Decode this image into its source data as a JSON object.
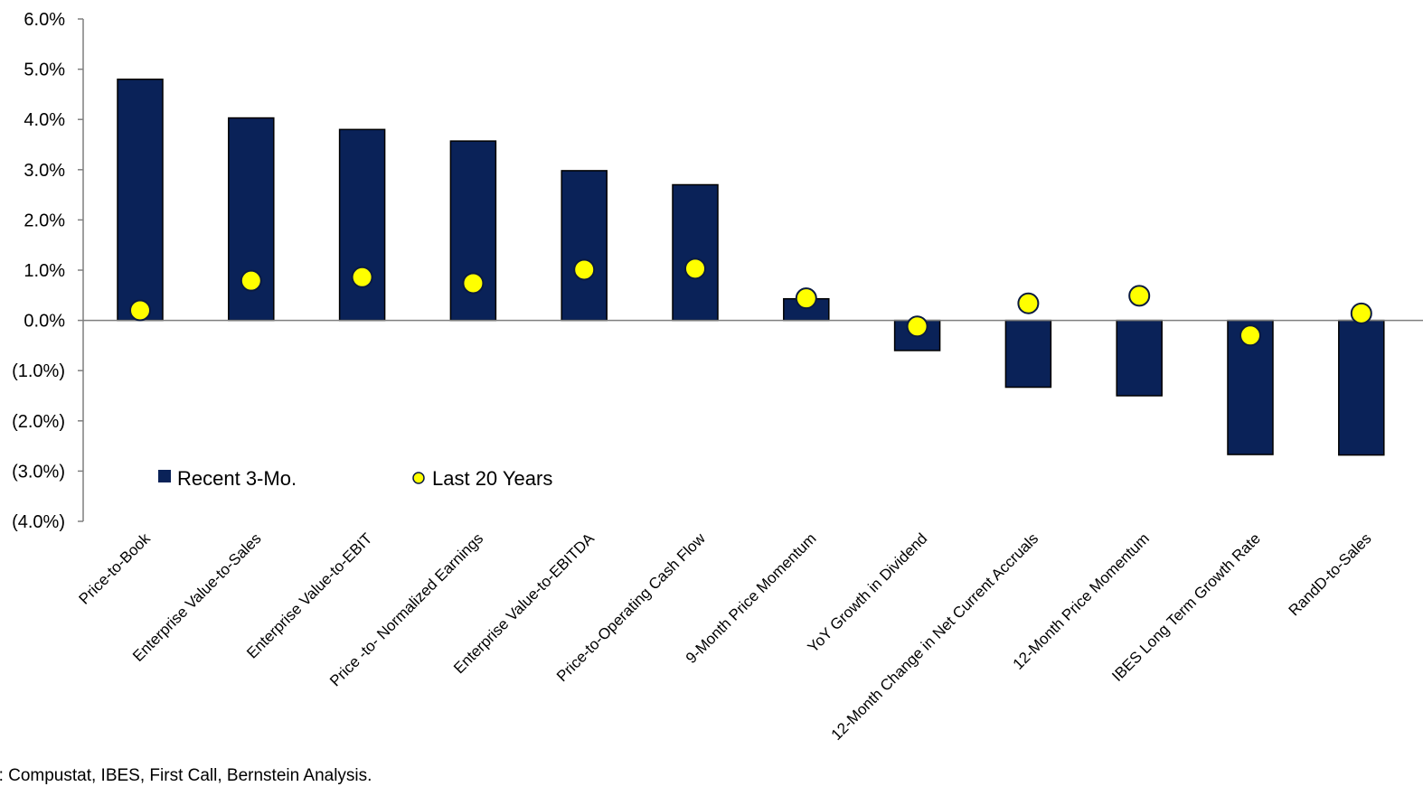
{
  "chart_data": {
    "type": "bar",
    "categories": [
      "Price-to-Book",
      "Enterprise Value-to-Sales",
      "Enterprise Value-to-EBIT",
      "Price -to- Normalized Earnings",
      "Enterprise Value-to-EBITDA",
      "Price-to-Operating Cash Flow",
      "9-Month Price Momentum",
      "YoY Growth in Dividend",
      "12-Month Change in Net Current Accruals",
      "12-Month Price Momentum",
      "IBES Long Term Growth Rate",
      "RandD-to-Sales"
    ],
    "series": [
      {
        "name": "Recent 3-Mo.",
        "kind": "bar",
        "values": [
          4.8,
          4.03,
          3.8,
          3.57,
          2.98,
          2.7,
          0.43,
          -0.6,
          -1.33,
          -1.5,
          -2.67,
          -2.68
        ]
      },
      {
        "name": "Last 20 Years",
        "kind": "marker",
        "values": [
          0.2,
          0.79,
          0.86,
          0.74,
          1.01,
          1.03,
          0.44,
          -0.12,
          0.34,
          0.49,
          -0.3,
          0.14
        ]
      }
    ],
    "ylim": [
      -4.0,
      6.0
    ],
    "yticks": [
      6.0,
      5.0,
      4.0,
      3.0,
      2.0,
      1.0,
      0.0,
      -1.0,
      -2.0,
      -3.0,
      -4.0
    ],
    "ytick_labels": [
      "6.0%",
      "5.0%",
      "4.0%",
      "3.0%",
      "2.0%",
      "1.0%",
      "0.0%",
      "(1.0%)",
      "(2.0%)",
      "(3.0%)",
      "(4.0%)"
    ],
    "legend_position": "bottom-left inside plot",
    "colors": {
      "bar": "#0a2258",
      "marker": "#ffff00",
      "marker_edge": "#0a1a40"
    }
  },
  "source_note": "e: Compustat, IBES, First Call, Bernstein Analysis."
}
